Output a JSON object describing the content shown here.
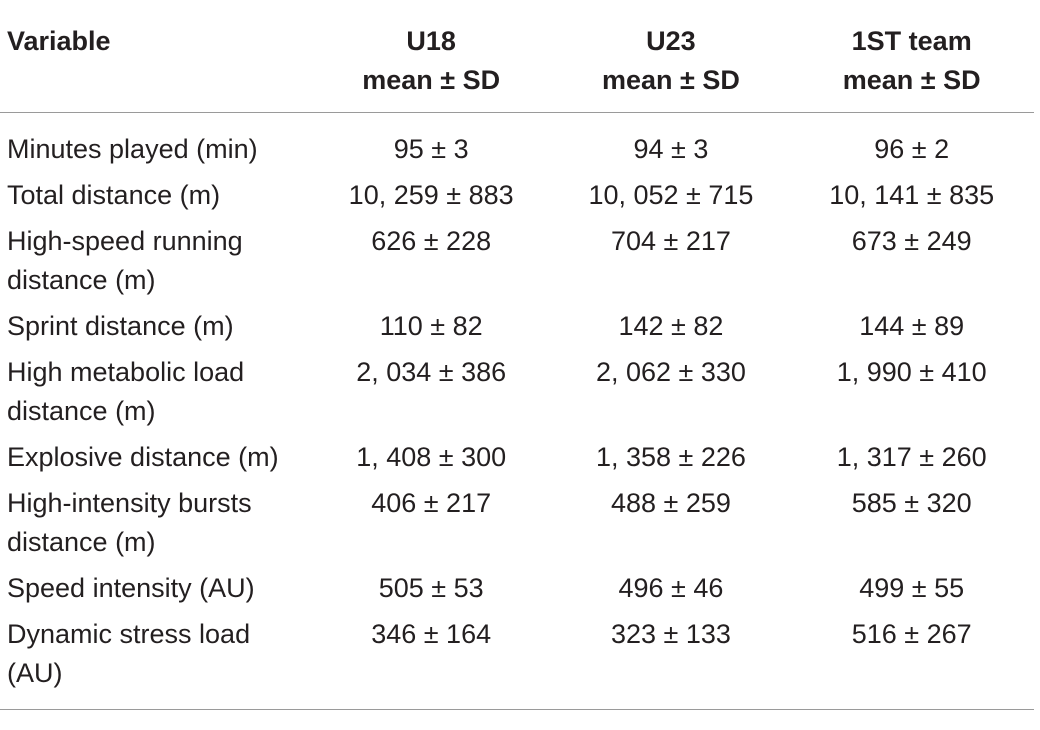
{
  "header": {
    "variable": "Variable",
    "groups": [
      {
        "line1": "U18",
        "line2": "mean ± SD"
      },
      {
        "line1": "U23",
        "line2": "mean ± SD"
      },
      {
        "line1": "1ST team",
        "line2": "mean ± SD"
      }
    ]
  },
  "rows": [
    {
      "variable": "Minutes played (min)",
      "u18": "95 ± 3",
      "u23": "94 ± 3",
      "first_team": "96 ± 2"
    },
    {
      "variable": "Total distance (m)",
      "u18": "10, 259 ± 883",
      "u23": "10, 052 ± 715",
      "first_team": "10, 141 ± 835"
    },
    {
      "variable": "High-speed running distance (m)",
      "u18": "626 ± 228",
      "u23": "704 ± 217",
      "first_team": "673 ± 249"
    },
    {
      "variable": "Sprint distance (m)",
      "u18": "110 ± 82",
      "u23": "142 ± 82",
      "first_team": "144 ± 89"
    },
    {
      "variable": "High metabolic load distance (m)",
      "u18": "2, 034 ± 386",
      "u23": "2, 062 ± 330",
      "first_team": "1, 990 ± 410"
    },
    {
      "variable": "Explosive distance (m)",
      "u18": "1, 408 ± 300",
      "u23": "1, 358 ± 226",
      "first_team": "1, 317 ± 260"
    },
    {
      "variable": "High-intensity bursts distance (m)",
      "u18": "406 ± 217",
      "u23": "488 ± 259",
      "first_team": "585 ± 320"
    },
    {
      "variable": "Speed intensity (AU)",
      "u18": "505 ± 53",
      "u23": "496 ± 46",
      "first_team": "499 ± 55"
    },
    {
      "variable": "Dynamic stress load (AU)",
      "u18": "346 ± 164",
      "u23": "323 ± 133",
      "first_team": "516 ± 267"
    }
  ]
}
